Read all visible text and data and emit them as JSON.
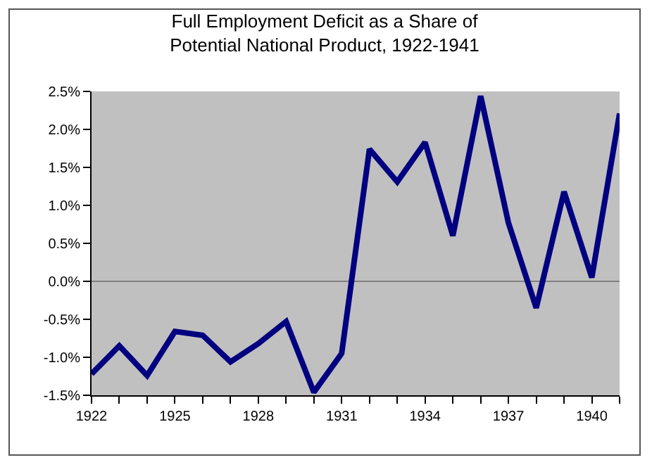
{
  "chart_data": {
    "type": "line",
    "title": "Full Employment Deficit as a Share of Potential National Product, 1922-1941",
    "x": [
      1922,
      1923,
      1924,
      1925,
      1926,
      1927,
      1928,
      1929,
      1930,
      1931,
      1932,
      1933,
      1934,
      1935,
      1936,
      1937,
      1938,
      1939,
      1940,
      1941
    ],
    "series": [
      {
        "color": "#000080",
        "values": [
          -1.22,
          -0.85,
          -1.24,
          -0.66,
          -0.71,
          -1.06,
          -0.82,
          -0.53,
          -1.46,
          -0.95,
          1.74,
          1.31,
          1.83,
          0.6,
          2.44,
          0.77,
          -0.35,
          1.18,
          0.05,
          2.21
        ]
      }
    ],
    "xlim": [
      1922,
      1941
    ],
    "xticks": [
      1922,
      {
        "value": 1923,
        "label": null
      },
      {
        "value": 1924,
        "label": null
      },
      1925,
      {
        "value": 1926,
        "label": null
      },
      {
        "value": 1927,
        "label": null
      },
      1928,
      {
        "value": 1929,
        "label": null
      },
      {
        "value": 1930,
        "label": null
      },
      1931,
      {
        "value": 1932,
        "label": null
      },
      {
        "value": 1933,
        "label": null
      },
      1934,
      {
        "value": 1935,
        "label": null
      },
      {
        "value": 1936,
        "label": null
      },
      1937,
      {
        "value": 1938,
        "label": null
      },
      {
        "value": 1939,
        "label": null
      },
      1940,
      {
        "value": 1941,
        "label": null
      }
    ],
    "ylim": [
      -1.5,
      2.5
    ],
    "yticks": [
      {
        "value": -1.5,
        "label": "-1.5%"
      },
      {
        "value": -1,
        "label": "-1.0%"
      },
      {
        "value": -0.5,
        "label": "-0.5%"
      },
      {
        "value": 0,
        "label": "0.0%"
      },
      {
        "value": 0.5,
        "label": "0.5%"
      },
      {
        "value": 1,
        "label": "1.0%"
      },
      {
        "value": 1.5,
        "label": "1.5%"
      },
      {
        "value": 2,
        "label": "2.0%"
      },
      {
        "value": 2.5,
        "label": "2.5%"
      }
    ],
    "ref_lines": [
      {
        "axis": "y",
        "value": 0,
        "color": "#808080"
      }
    ],
    "marker": "none",
    "line_style": "solid"
  }
}
